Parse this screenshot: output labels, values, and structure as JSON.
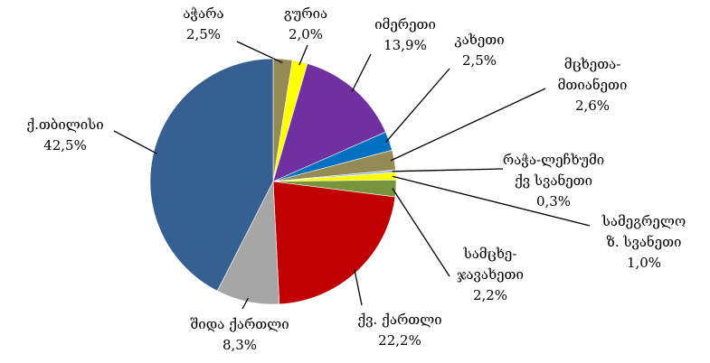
{
  "chart_data": {
    "type": "pie",
    "categories": [
      "აჭარა",
      "გურია",
      "იმერეთი",
      "კახეთი",
      "მცხეთა-\nმთიანეთი",
      "რაჭა-ლეჩხუმი\nქვ  სვანეთი",
      "სამეგრელო\nზ.  სვანეთი",
      "სამცხე-\nჯავახეთი",
      "ქვ.  ქართლი",
      "შიდა  ქართლი",
      "ქ.თბილისი"
    ],
    "values": [
      2.5,
      2.0,
      13.9,
      2.5,
      2.6,
      0.3,
      1.0,
      2.2,
      22.2,
      8.3,
      42.5
    ],
    "value_labels": [
      "2,5%",
      "2,0%",
      "13,9%",
      "2,5%",
      "2,6%",
      "0,3%",
      "1,0%",
      "2,2%",
      "22,2%",
      "8,3%",
      "42,5%"
    ],
    "colors": [
      "#948A54",
      "#FFFF00",
      "#7030A0",
      "#0070C0",
      "#948A54",
      "#8EB4E3",
      "#FFFF00",
      "#77933C",
      "#C00000",
      "#A6A6A6",
      "#376092"
    ]
  }
}
